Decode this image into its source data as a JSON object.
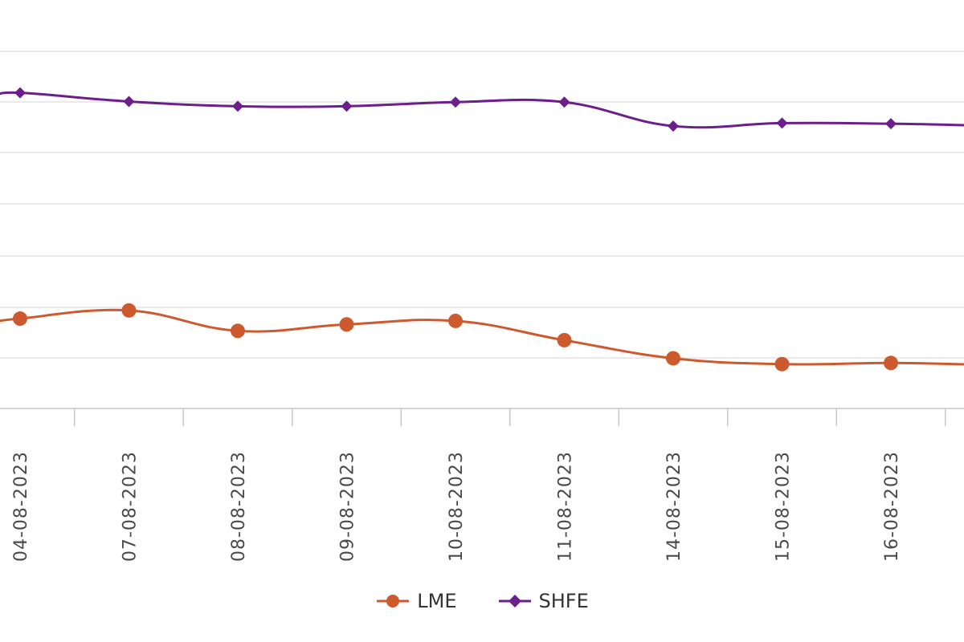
{
  "chart_data": {
    "type": "line",
    "categories": [
      "04-08-2023",
      "07-08-2023",
      "08-08-2023",
      "09-08-2023",
      "10-08-2023",
      "11-08-2023",
      "14-08-2023",
      "15-08-2023",
      "16-08-2023"
    ],
    "series": [
      {
        "name": "LME",
        "values": [
          2254,
          2268,
          2233,
          2244,
          2250,
          2217,
          2186,
          2176,
          2178
        ],
        "color": "#cc5a2e",
        "marker": "circle"
      },
      {
        "name": "SHFE",
        "values": [
          2641,
          2626,
          2618,
          2618,
          2625,
          2625,
          2584,
          2589,
          2588
        ],
        "color": "#6b1e8c",
        "marker": "diamond"
      }
    ],
    "xlabel": "",
    "ylabel": "",
    "ylim": [
      2100,
      2800
    ],
    "grid": true,
    "legend_position": "bottom-center"
  }
}
